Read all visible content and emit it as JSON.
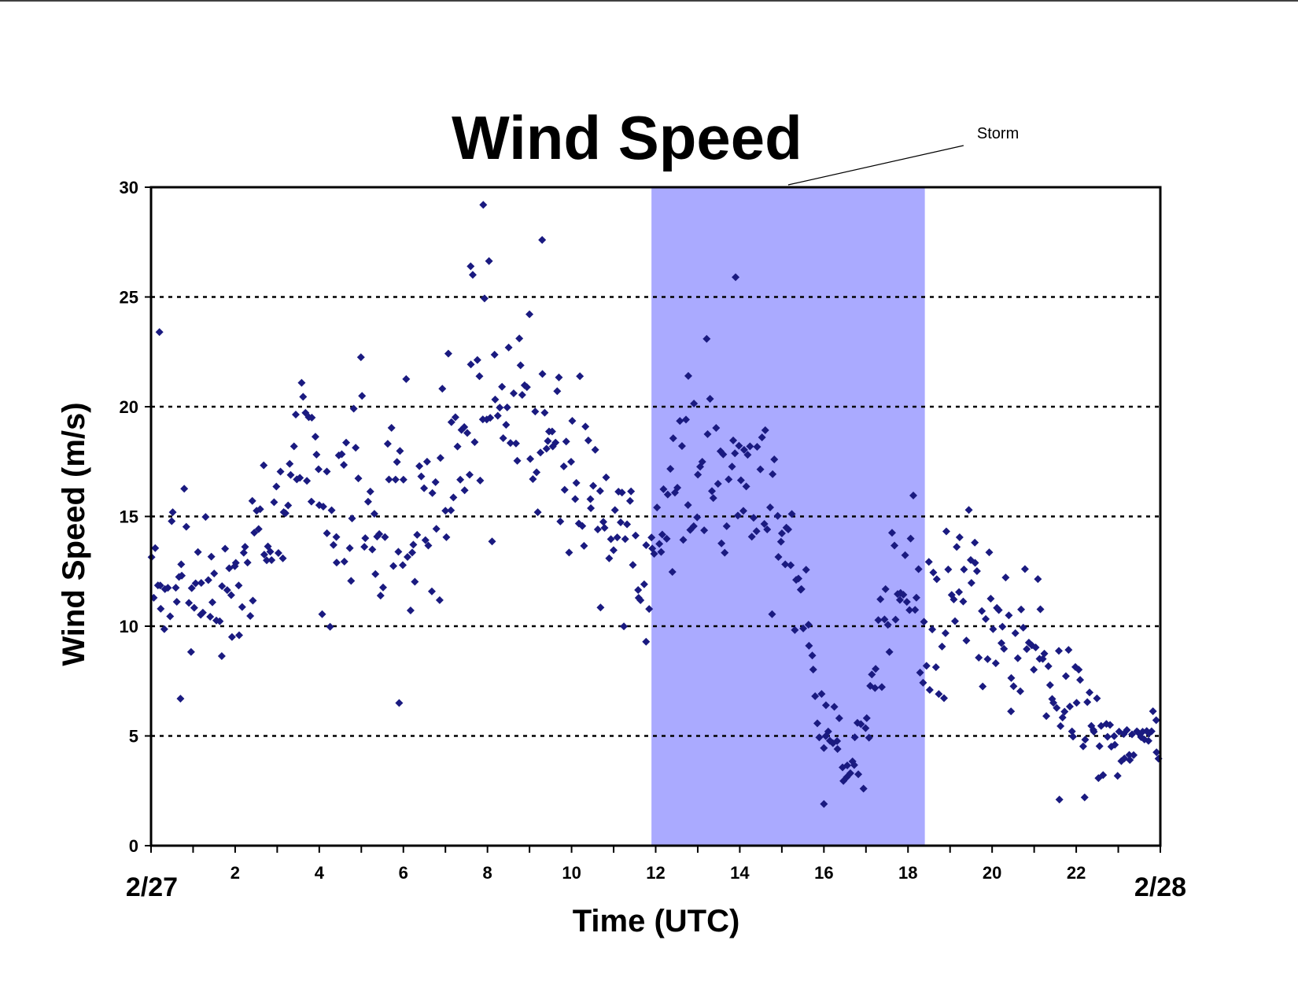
{
  "chart_data": {
    "type": "scatter",
    "title": "Wind Speed",
    "xlabel": "Time (UTC)",
    "ylabel": "Wind Speed (m/s)",
    "xlim": [
      0,
      24
    ],
    "ylim": [
      0,
      30
    ],
    "x_ticks": [
      {
        "value": 2,
        "label": "2"
      },
      {
        "value": 4,
        "label": "4"
      },
      {
        "value": 6,
        "label": "6"
      },
      {
        "value": 8,
        "label": "8"
      },
      {
        "value": 10,
        "label": "10"
      },
      {
        "value": 12,
        "label": "12"
      },
      {
        "value": 14,
        "label": "14"
      },
      {
        "value": 16,
        "label": "16"
      },
      {
        "value": 18,
        "label": "18"
      },
      {
        "value": 20,
        "label": "20"
      },
      {
        "value": 22,
        "label": "22"
      }
    ],
    "y_ticks": [
      {
        "value": 0,
        "label": "0"
      },
      {
        "value": 5,
        "label": "5"
      },
      {
        "value": 10,
        "label": "10"
      },
      {
        "value": 15,
        "label": "15"
      },
      {
        "value": 20,
        "label": "20"
      },
      {
        "value": 25,
        "label": "25"
      },
      {
        "value": 30,
        "label": "30"
      }
    ],
    "date_labels": {
      "start": "2/27",
      "end": "2/28"
    },
    "grid": {
      "horizontal": true,
      "style": "dotted"
    },
    "marker": {
      "shape": "diamond",
      "color": "#1a1a80"
    },
    "shaded_region": {
      "label": "Storm",
      "x_start": 11.9,
      "x_end": 18.4,
      "color": "#aaaaff"
    },
    "points_per_hour": 22,
    "hourly_mean": [
      [
        0.0,
        14.0
      ],
      [
        0.5,
        12.5
      ],
      [
        1.0,
        10.8
      ],
      [
        1.5,
        12.0
      ],
      [
        2.0,
        11.0
      ],
      [
        2.5,
        13.5
      ],
      [
        3.0,
        14.5
      ],
      [
        3.5,
        19.0
      ],
      [
        4.0,
        15.5
      ],
      [
        4.5,
        15.5
      ],
      [
        5.0,
        16.0
      ],
      [
        5.5,
        14.5
      ],
      [
        6.0,
        14.5
      ],
      [
        6.5,
        15.0
      ],
      [
        7.0,
        17.0
      ],
      [
        7.5,
        19.5
      ],
      [
        8.0,
        20.0
      ],
      [
        8.5,
        20.0
      ],
      [
        9.0,
        20.0
      ],
      [
        9.5,
        18.5
      ],
      [
        10.0,
        17.0
      ],
      [
        10.5,
        16.5
      ],
      [
        11.0,
        15.0
      ],
      [
        11.5,
        13.0
      ],
      [
        11.8,
        11.0
      ],
      [
        12.2,
        15.0
      ],
      [
        12.6,
        18.0
      ],
      [
        13.0,
        18.0
      ],
      [
        13.5,
        17.0
      ],
      [
        14.0,
        18.5
      ],
      [
        14.5,
        16.0
      ],
      [
        15.0,
        14.0
      ],
      [
        15.4,
        12.0
      ],
      [
        15.8,
        6.5
      ],
      [
        16.2,
        4.8
      ],
      [
        16.6,
        4.2
      ],
      [
        17.0,
        5.0
      ],
      [
        17.3,
        8.5
      ],
      [
        17.7,
        12.0
      ],
      [
        18.0,
        13.5
      ],
      [
        18.3,
        10.0
      ],
      [
        18.6,
        8.5
      ],
      [
        19.0,
        11.0
      ],
      [
        19.5,
        12.0
      ],
      [
        20.0,
        10.0
      ],
      [
        20.5,
        9.0
      ],
      [
        21.0,
        10.0
      ],
      [
        21.5,
        6.0
      ],
      [
        22.0,
        7.0
      ],
      [
        22.5,
        5.0
      ],
      [
        23.0,
        4.3
      ],
      [
        23.5,
        4.5
      ],
      [
        24.0,
        5.0
      ]
    ],
    "hourly_spread": [
      [
        0.0,
        2.5
      ],
      [
        3.0,
        3.0
      ],
      [
        6.0,
        3.5
      ],
      [
        9.0,
        3.0
      ],
      [
        11.5,
        3.0
      ],
      [
        13.0,
        3.0
      ],
      [
        15.5,
        2.0
      ],
      [
        16.0,
        1.4
      ],
      [
        17.0,
        1.5
      ],
      [
        17.5,
        2.5
      ],
      [
        19.0,
        2.5
      ],
      [
        21.0,
        2.0
      ],
      [
        22.5,
        1.3
      ],
      [
        23.0,
        0.7
      ],
      [
        24.0,
        0.8
      ]
    ],
    "notable_points": [
      [
        0.2,
        23.4
      ],
      [
        7.9,
        29.2
      ],
      [
        9.3,
        27.6
      ],
      [
        13.9,
        25.9
      ],
      [
        7.6,
        26.4
      ],
      [
        5.9,
        6.5
      ],
      [
        0.7,
        6.7
      ],
      [
        16.0,
        1.9
      ],
      [
        21.6,
        2.1
      ],
      [
        22.2,
        2.2
      ]
    ]
  }
}
